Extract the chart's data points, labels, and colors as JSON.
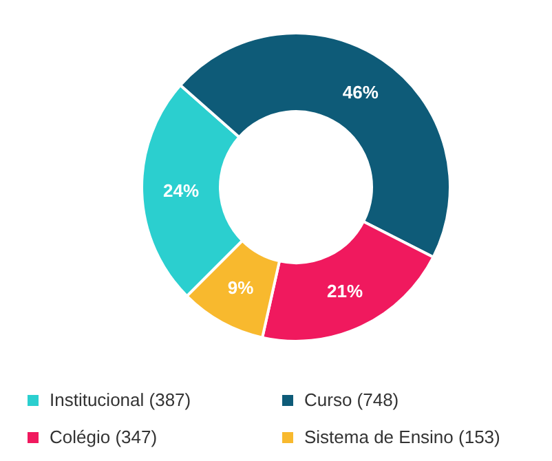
{
  "chart_data": {
    "type": "donut",
    "categories": [
      "Institucional (387)",
      "Curso (748)",
      "Colégio (347)",
      "Sistema de Ensino (153)"
    ],
    "values": [
      24,
      46,
      21,
      9
    ],
    "colors": [
      "#2bcfcf",
      "#0e5b78",
      "#f0195e",
      "#f8b92e"
    ],
    "value_labels": [
      "24%",
      "46%",
      "21%",
      "9%"
    ],
    "legend": "bottom"
  }
}
